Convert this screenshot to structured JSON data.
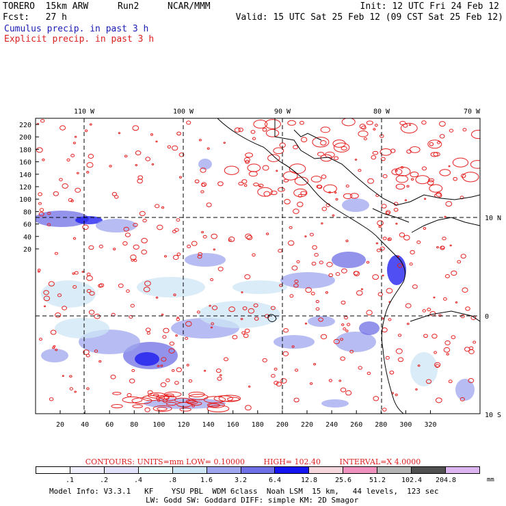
{
  "header": {
    "model": "TORERO  15km ARW",
    "run": "Run2",
    "org": "NCAR/MMM",
    "init": "Init: 12 UTC Fri 24 Feb 12",
    "fcst": "Fcst:   27 h",
    "valid": "Valid: 15 UTC Sat 25 Feb 12 (09 CST Sat 25 Feb 12)"
  },
  "legend": {
    "cumulus": "Cumulus precip. in past 3 h",
    "explicit": "Explicit precip. in past 3 h"
  },
  "map": {
    "top_lon_labels": [
      "110 W",
      "100 W",
      "90 W",
      "80 W",
      "70 W"
    ],
    "right_lat_labels": [
      "10 N",
      "0",
      "10 S"
    ],
    "y_ticks": [
      "220",
      "200",
      "180",
      "160",
      "140",
      "120",
      "100",
      "80",
      "60",
      "40",
      "20"
    ],
    "x_ticks": [
      "20",
      "40",
      "60",
      "80",
      "100",
      "120",
      "140",
      "160",
      "180",
      "200",
      "220",
      "240",
      "260",
      "280",
      "300",
      "320"
    ],
    "colors": {
      "cumulus": "#5a5adc",
      "explicit": "#e61e1e",
      "coast": "#000000"
    }
  },
  "contours": {
    "units": "CONTOURS:  UNITS=mm  LOW= 0.10000",
    "high": "HIGH=  102.40",
    "interval": "INTERVAL=X  4.0000"
  },
  "colorbar": {
    "labels": [
      ".1",
      ".2",
      ".4",
      ".8",
      "1.6",
      "3.2",
      "6.4",
      "12.8",
      "25.6",
      "51.2",
      "102.4",
      "204.8"
    ],
    "unit": "mm",
    "colors": [
      "#ffffff",
      "#f0f0fc",
      "#e2e2fa",
      "#e6f8fa",
      "#cce6f6",
      "#9fa5ee",
      "#6f6fe6",
      "#1414f0",
      "#f4d6dc",
      "#f092be",
      "#b4b4b4",
      "#505050",
      "#dcb4f0"
    ]
  },
  "model_info": {
    "line1": "Model Info: V3.3.1   KF    YSU PBL  WDM 6class  Noah LSM  15 km,   44 levels,  123 sec",
    "line2": "LW: Godd SW: Goddard DIFF: simple KM: 2D Smagor"
  }
}
